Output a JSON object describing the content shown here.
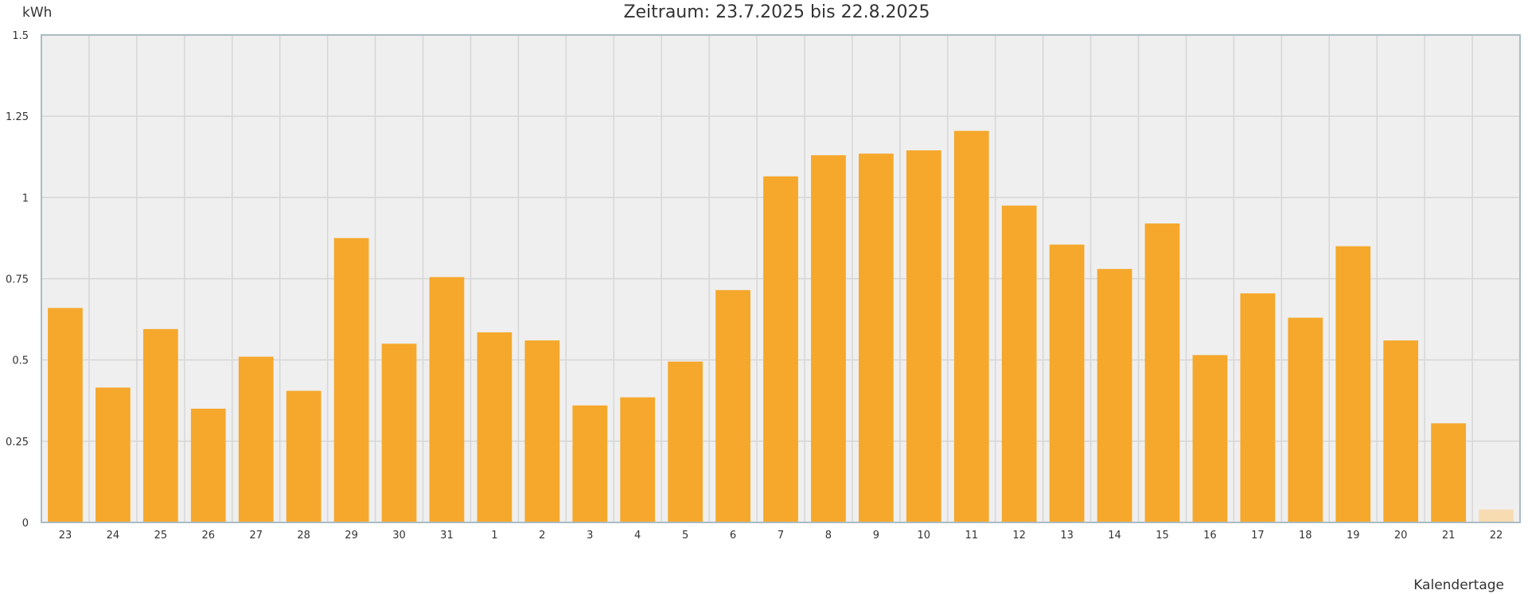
{
  "chart_data": {
    "type": "bar",
    "title": "Zeitraum: 23.7.2025 bis 22.8.2025",
    "ylabel": "kWh",
    "xlabel": "Kalendertage",
    "ylim": [
      0,
      1.5
    ],
    "yticks": [
      {
        "value": 0,
        "label": "0"
      },
      {
        "value": 0.25,
        "label": "0.25"
      },
      {
        "value": 0.5,
        "label": "0.5"
      },
      {
        "value": 0.75,
        "label": "0.75"
      },
      {
        "value": 1,
        "label": "1"
      },
      {
        "value": 1.25,
        "label": "1.25"
      },
      {
        "value": 1.5,
        "label": "1.5"
      }
    ],
    "categories": [
      "23",
      "24",
      "25",
      "26",
      "27",
      "28",
      "29",
      "30",
      "31",
      "1",
      "2",
      "3",
      "4",
      "5",
      "6",
      "7",
      "8",
      "9",
      "10",
      "11",
      "12",
      "13",
      "14",
      "15",
      "16",
      "17",
      "18",
      "19",
      "20",
      "21",
      "22"
    ],
    "values": [
      0.66,
      0.415,
      0.595,
      0.35,
      0.51,
      0.405,
      0.875,
      0.55,
      0.755,
      0.585,
      0.56,
      0.36,
      0.385,
      0.495,
      0.715,
      1.065,
      1.13,
      1.135,
      1.145,
      1.205,
      0.975,
      0.855,
      0.78,
      0.92,
      0.515,
      0.705,
      0.63,
      0.85,
      0.56,
      0.305,
      0.04
    ],
    "grid": true,
    "colors": {
      "bar": "#f5a82c",
      "bar_current": "#f7dcb2",
      "plot_background": "#efefef",
      "grid": "#d6d6d6",
      "border": "#a9bcc4",
      "text": "#333333"
    },
    "highlight_last_bar": true
  }
}
